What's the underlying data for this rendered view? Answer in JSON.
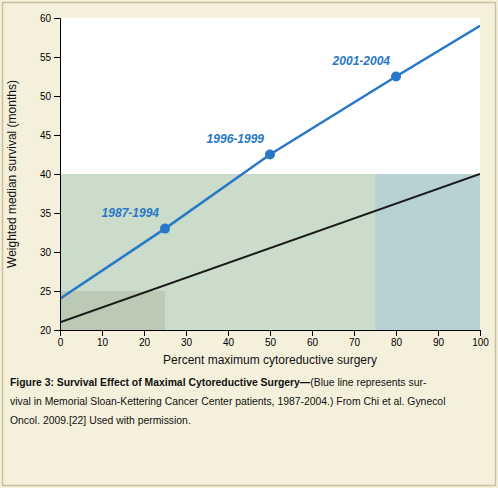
{
  "chart_data": {
    "type": "line",
    "xlabel": "Percent maximum cytoreductive surgery",
    "ylabel": "Weighted median survival (months)",
    "xlim": [
      0,
      100
    ],
    "ylim": [
      20,
      60
    ],
    "xticks": [
      0,
      10,
      20,
      30,
      40,
      50,
      60,
      70,
      80,
      90,
      100
    ],
    "yticks": [
      20,
      25,
      30,
      35,
      40,
      45,
      50,
      55,
      60
    ],
    "regions": [
      {
        "x0": 0,
        "x1": 25,
        "y0": 20,
        "y1": 25,
        "color": "#c0b0a0"
      },
      {
        "x0": 0,
        "x1": 75,
        "y0": 20,
        "y1": 40,
        "color": "#a8c4a8"
      },
      {
        "x0": 75,
        "x1": 100,
        "y0": 20,
        "y1": 40,
        "color": "#88b4b8"
      }
    ],
    "series": [
      {
        "type": "line",
        "color": "#1a1a1a",
        "x": [
          0,
          100
        ],
        "values": [
          21.0,
          40.0
        ]
      },
      {
        "type": "line",
        "color": "#2878c8",
        "x": [
          0,
          25,
          50,
          80,
          100
        ],
        "values": [
          24.0,
          33.0,
          42.5,
          52.5,
          59.0
        ]
      },
      {
        "type": "scatter",
        "color": "#2878c8",
        "marker": "circle",
        "x": [
          25,
          50,
          80
        ],
        "values": [
          33.0,
          42.5,
          52.5
        ]
      }
    ],
    "annotations": [
      {
        "text": "1987-1994",
        "x": 25,
        "y": 33.0
      },
      {
        "text": "1996-1999",
        "x": 50,
        "y": 42.5
      },
      {
        "text": "2001-2004",
        "x": 80,
        "y": 52.5
      }
    ],
    "caption": {
      "bold": "Figure 3: Survival Effect of Maximal Cytoreductive Surgery—",
      "lines": [
        "(Blue line represents sur-",
        "vival in Memorial Sloan-Kettering Cancer Center patients, 1987-2004.) From Chi et al. Gynecol",
        "Oncol. 2009.[22] Used with permission."
      ]
    }
  }
}
